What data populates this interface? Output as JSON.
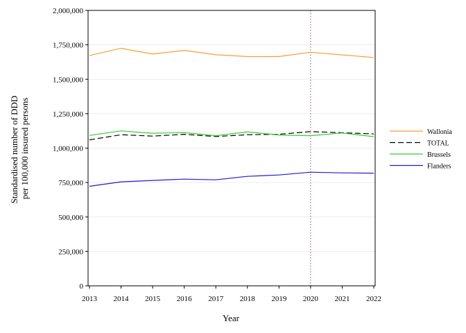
{
  "chart_data": {
    "type": "line",
    "xlabel": "Year",
    "ylabel_lines": [
      "Standardised number of DDD",
      "per 100,000 insured persons"
    ],
    "x": [
      2013,
      2014,
      2015,
      2016,
      2017,
      2018,
      2019,
      2020,
      2021,
      2022
    ],
    "x_tick_labels": [
      "2013",
      "2014",
      "2015",
      "2016",
      "2017",
      "2018",
      "2019",
      "2020",
      "2021",
      "2022"
    ],
    "ylim": [
      0,
      2000000
    ],
    "y_ticks": [
      0,
      250000,
      500000,
      750000,
      1000000,
      1250000,
      1500000,
      1750000,
      2000000
    ],
    "y_tick_labels": [
      "0",
      "250,000",
      "500,000",
      "750,000",
      "1,000,000",
      "1,250,000",
      "1,500,000",
      "1,750,000",
      "2,000,000"
    ],
    "grid": "horizontal",
    "legend_position": "right",
    "reference_line": {
      "x": 2020,
      "color": "#c0607a",
      "style": "dotted"
    },
    "series": [
      {
        "name": "Wallonia",
        "color": "#f5a030",
        "dash": "solid",
        "values": [
          1672000,
          1725000,
          1683000,
          1710000,
          1678000,
          1665000,
          1665000,
          1696000,
          1677000,
          1658000
        ]
      },
      {
        "name": "TOTAL",
        "color": "#000000",
        "dash": "dashed",
        "values": [
          1060000,
          1097000,
          1087000,
          1100000,
          1084000,
          1097000,
          1100000,
          1120000,
          1112000,
          1103000
        ]
      },
      {
        "name": "Brussels",
        "color": "#33cc33",
        "dash": "solid",
        "values": [
          1092000,
          1125000,
          1108000,
          1113000,
          1090000,
          1118000,
          1095000,
          1090000,
          1110000,
          1083000
        ]
      },
      {
        "name": "Flanders",
        "color": "#1a1adb",
        "dash": "solid",
        "values": [
          723000,
          755000,
          765000,
          775000,
          770000,
          795000,
          805000,
          825000,
          820000,
          818000
        ]
      }
    ]
  }
}
